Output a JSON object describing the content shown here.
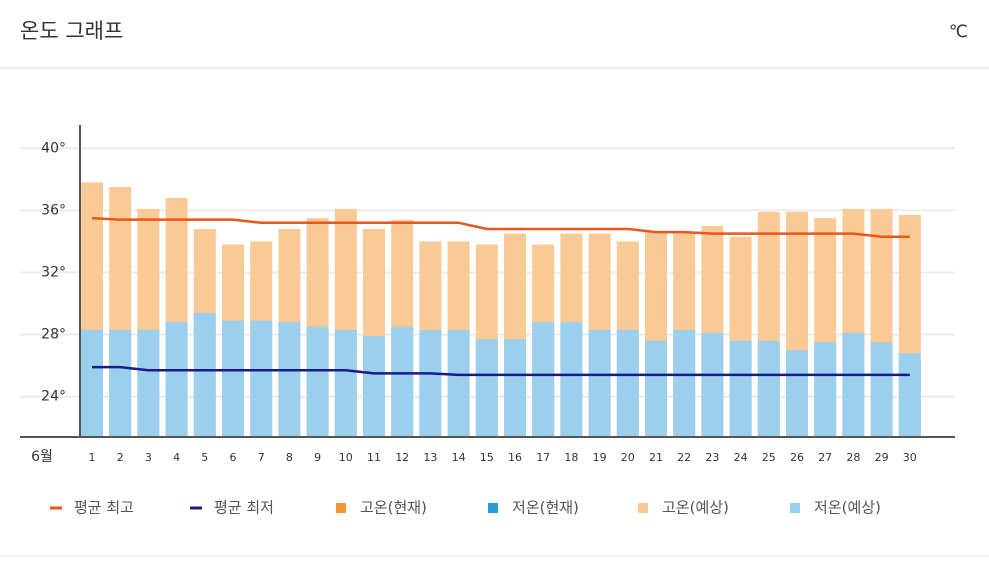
{
  "header": {
    "title": "온도 그래프",
    "unit": "℃"
  },
  "chart_data": {
    "type": "bar",
    "x_label": "6월",
    "categories": [
      "1",
      "2",
      "3",
      "4",
      "5",
      "6",
      "7",
      "8",
      "9",
      "10",
      "11",
      "12",
      "13",
      "14",
      "15",
      "16",
      "17",
      "18",
      "19",
      "20",
      "21",
      "22",
      "23",
      "24",
      "25",
      "26",
      "27",
      "28",
      "29",
      "30"
    ],
    "ylim": [
      21.4,
      41.5
    ],
    "yticks": [
      {
        "value": 24,
        "label": "24°"
      },
      {
        "value": 28,
        "label": "28°"
      },
      {
        "value": 32,
        "label": "32°"
      },
      {
        "value": 36,
        "label": "36°"
      },
      {
        "value": 40,
        "label": "40°"
      }
    ],
    "grid": true,
    "series": [
      {
        "name": "평균 최고",
        "kind": "line",
        "color": "#e8561c",
        "values": [
          35.5,
          35.4,
          35.4,
          35.4,
          35.4,
          35.4,
          35.2,
          35.2,
          35.2,
          35.2,
          35.2,
          35.2,
          35.2,
          35.2,
          34.8,
          34.8,
          34.8,
          34.8,
          34.8,
          34.8,
          34.6,
          34.6,
          34.5,
          34.5,
          34.5,
          34.5,
          34.5,
          34.5,
          34.3,
          34.3
        ]
      },
      {
        "name": "평균 최저",
        "kind": "line",
        "color": "#1a1a8c",
        "values": [
          25.9,
          25.9,
          25.7,
          25.7,
          25.7,
          25.7,
          25.7,
          25.7,
          25.7,
          25.7,
          25.5,
          25.5,
          25.5,
          25.4,
          25.4,
          25.4,
          25.4,
          25.4,
          25.4,
          25.4,
          25.4,
          25.4,
          25.4,
          25.4,
          25.4,
          25.4,
          25.4,
          25.4,
          25.4,
          25.4
        ]
      },
      {
        "name": "고온(현재)",
        "kind": "bar",
        "color": "#f7962f",
        "values": [
          null,
          null,
          null,
          null,
          null,
          null,
          null,
          null,
          null,
          null,
          null,
          null,
          null,
          null,
          null,
          null,
          null,
          null,
          null,
          null,
          null,
          null,
          null,
          null,
          null,
          null,
          null,
          null,
          null,
          null
        ]
      },
      {
        "name": "저온(현재)",
        "kind": "bar",
        "color": "#2a9bd6",
        "values": [
          null,
          null,
          null,
          null,
          null,
          null,
          null,
          null,
          null,
          null,
          null,
          null,
          null,
          null,
          null,
          null,
          null,
          null,
          null,
          null,
          null,
          null,
          null,
          null,
          null,
          null,
          null,
          null,
          null,
          null
        ]
      },
      {
        "name": "고온(예상)",
        "kind": "bar",
        "color": "#f9c996",
        "values": [
          37.8,
          37.5,
          36.1,
          36.8,
          34.8,
          33.8,
          34.0,
          34.8,
          35.5,
          36.1,
          34.8,
          35.4,
          34.0,
          34.0,
          33.8,
          34.5,
          33.8,
          34.5,
          34.5,
          34.0,
          34.6,
          34.6,
          35.0,
          34.3,
          35.9,
          35.9,
          35.5,
          36.1,
          36.1,
          35.7
        ]
      },
      {
        "name": "저온(예상)",
        "kind": "bar",
        "color": "#9ad0ee",
        "values": [
          28.3,
          28.3,
          28.3,
          28.8,
          29.4,
          28.9,
          28.9,
          28.8,
          28.5,
          28.3,
          27.9,
          28.5,
          28.3,
          28.3,
          27.7,
          27.7,
          28.8,
          28.8,
          28.3,
          28.3,
          27.6,
          28.3,
          28.1,
          27.6,
          27.6,
          27.0,
          27.5,
          28.1,
          27.5,
          26.8
        ]
      }
    ]
  }
}
